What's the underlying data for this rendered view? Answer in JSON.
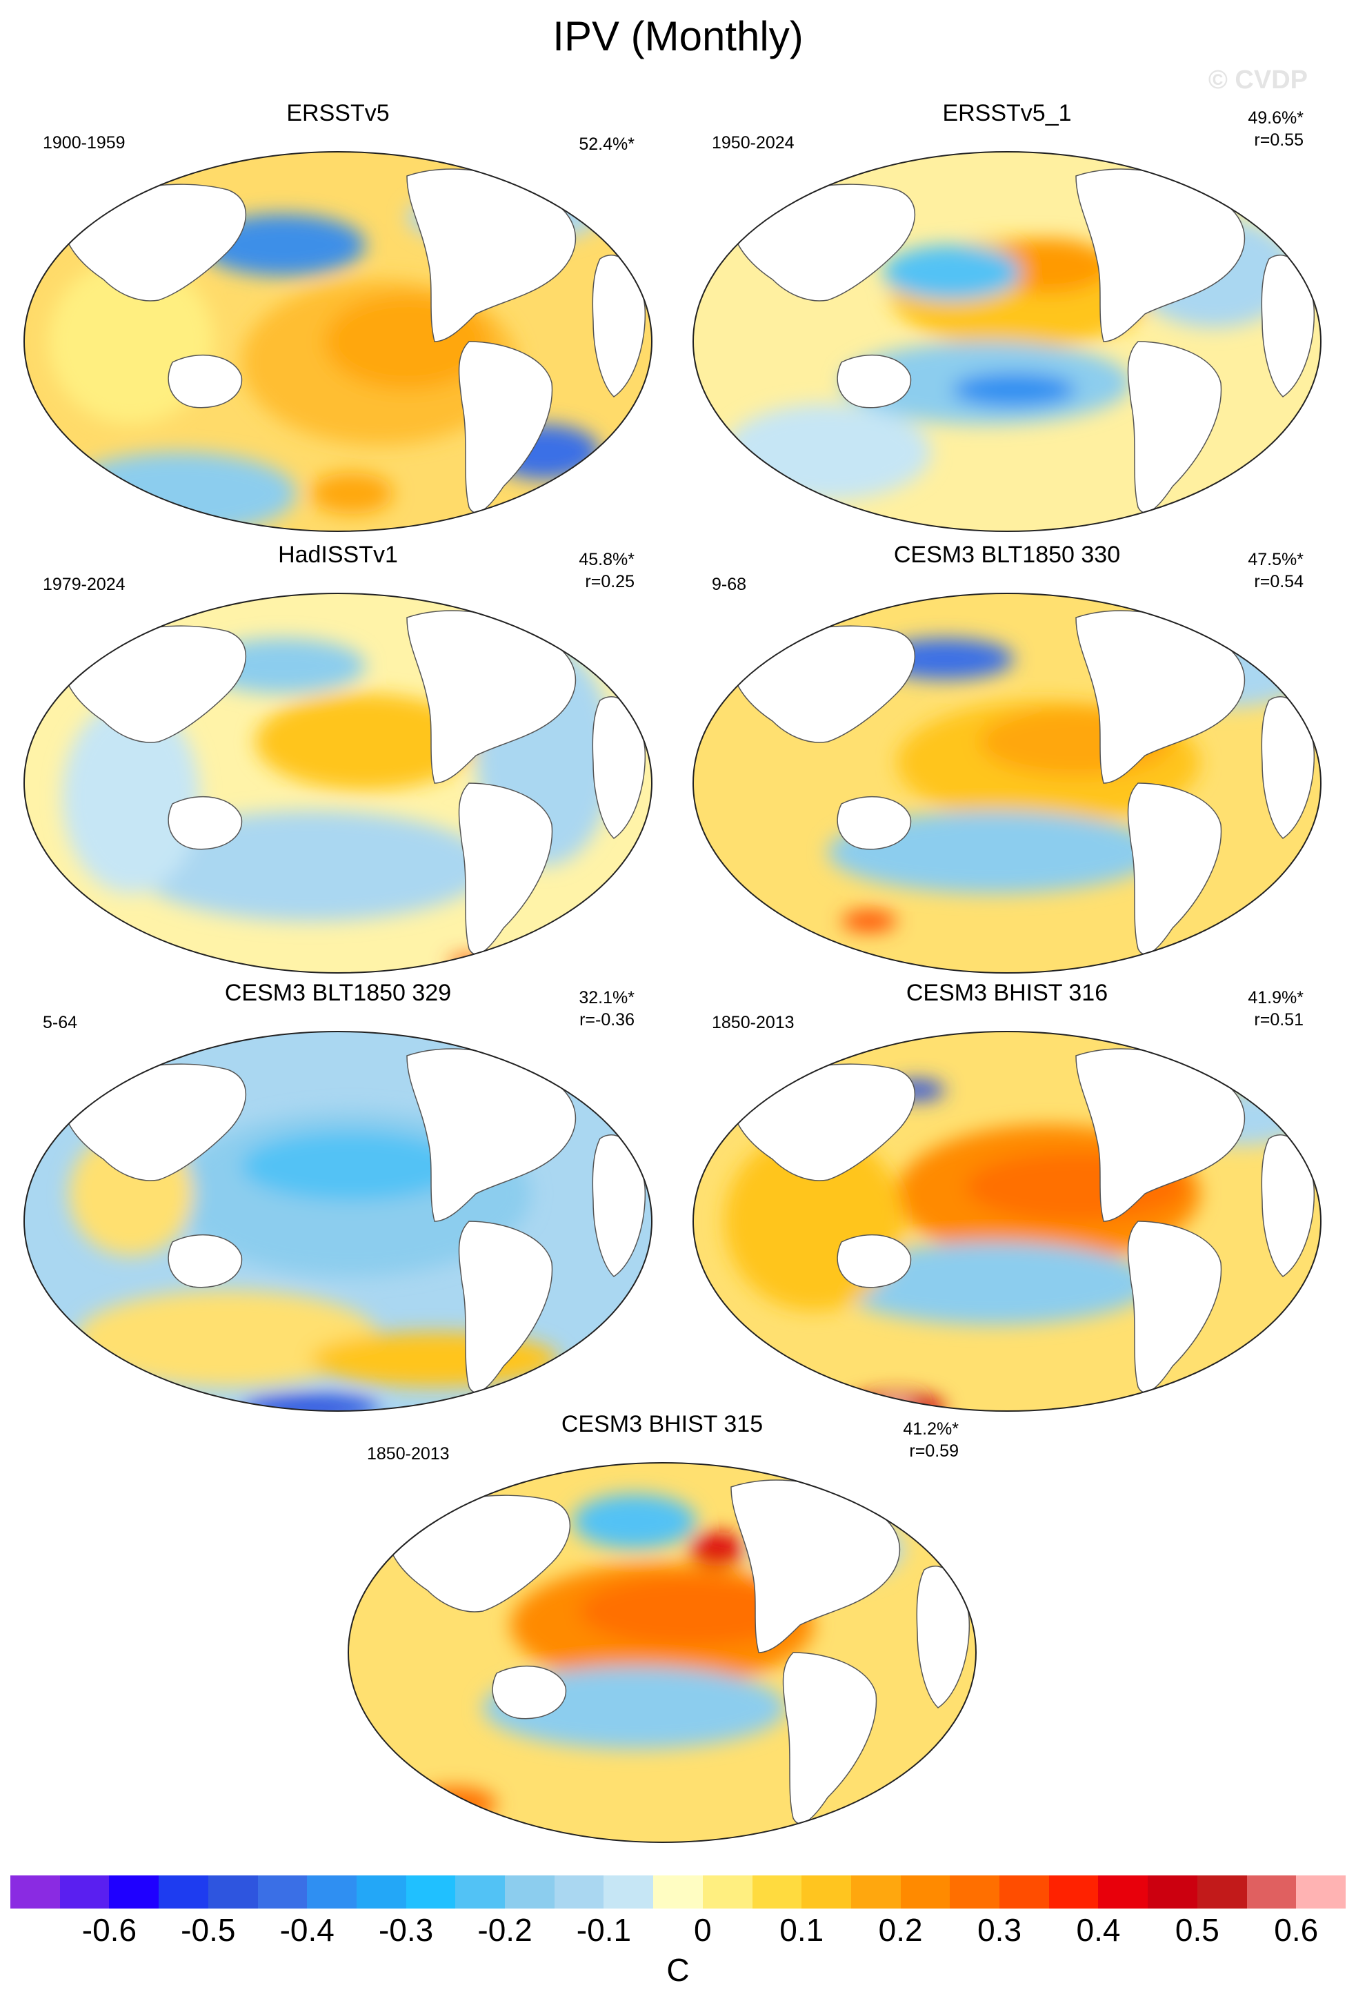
{
  "figure": {
    "title": "IPV (Monthly)",
    "copyright": "© CVDP"
  },
  "panels": [
    {
      "title": "ERSSTv5",
      "left": "1900-1959",
      "pct": "52.4%*",
      "r": "",
      "pattern": "p1"
    },
    {
      "title": "ERSSTv5_1",
      "left": "1950-2024",
      "pct": "49.6%*",
      "r": "r=0.55",
      "pattern": "p2"
    },
    {
      "title": "HadISSTv1",
      "left": "1979-2024",
      "pct": "45.8%*",
      "r": "r=0.25",
      "pattern": "p3"
    },
    {
      "title": "CESM3 BLT1850 330",
      "left": "9-68",
      "pct": "47.5%*",
      "r": "r=0.54",
      "pattern": "p4"
    },
    {
      "title": "CESM3 BLT1850 329",
      "left": "5-64",
      "pct": "32.1%*",
      "r": "r=-0.36",
      "pattern": "p5"
    },
    {
      "title": "CESM3 BHIST 316",
      "left": "1850-2013",
      "pct": "41.9%*",
      "r": "r=0.51",
      "pattern": "p6"
    },
    {
      "title": "CESM3 BHIST 315",
      "left": "1850-2013",
      "pct": "41.2%*",
      "r": "r=0.59",
      "pattern": "p7"
    }
  ],
  "colorbar": {
    "unit": "C",
    "ticks": [
      "-0.6",
      "-0.5",
      "-0.4",
      "-0.3",
      "-0.2",
      "-0.1",
      "0",
      "0.1",
      "0.2",
      "0.3",
      "0.4",
      "0.5",
      "0.6"
    ],
    "colors": [
      "#8a2be2",
      "#5a1ff0",
      "#1f00ff",
      "#1e3cf0",
      "#2e55df",
      "#3a6fe6",
      "#2f8ff2",
      "#23a7f7",
      "#20c0ff",
      "#52c2f5",
      "#8ccdee",
      "#aad7f1",
      "#c6e6f5",
      "#fffdc2",
      "#ffef80",
      "#ffdb3f",
      "#ffc51f",
      "#ffa70e",
      "#ff8a00",
      "#ff6f00",
      "#ff4d00",
      "#ff2200",
      "#e8000b",
      "#cc000f",
      "#c21a1a",
      "#e06060",
      "#ffb3b3"
    ]
  }
}
